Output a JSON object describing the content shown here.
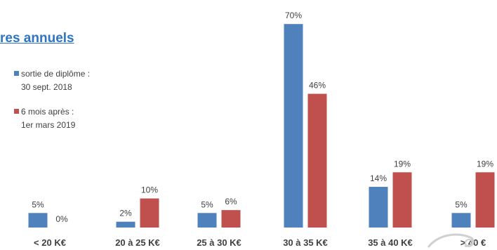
{
  "chart_data": {
    "type": "bar",
    "title": "res annuels",
    "categories": [
      "< 20 K€",
      "20 à 25 K€",
      "25 à 30 K€",
      "30 à 35 K€",
      "35 à 40 K€",
      "> 40 €"
    ],
    "series": [
      {
        "name": "sortie de diplôme : 30 sept. 2018",
        "color": "#4f81bd",
        "values": [
          5,
          2,
          5,
          70,
          14,
          5
        ],
        "labels": [
          "5%",
          "2%",
          "5%",
          "70%",
          "14%",
          "5%"
        ]
      },
      {
        "name": "6 mois après : 1er mars 2019",
        "color": "#c0504d",
        "values": [
          0,
          10,
          6,
          46,
          19,
          19
        ],
        "labels": [
          "0%",
          "10%",
          "6%",
          "46%",
          "19%",
          "19%"
        ]
      }
    ],
    "ylim": [
      0,
      70
    ],
    "grid": false,
    "legend_position": "left"
  },
  "legend": [
    {
      "line1": "sortie de diplôme :",
      "line2": "30 sept. 2018",
      "color": "#4f81bd"
    },
    {
      "line1": "6 mois après :",
      "line2": "1er mars 2019",
      "color": "#c0504d"
    }
  ]
}
